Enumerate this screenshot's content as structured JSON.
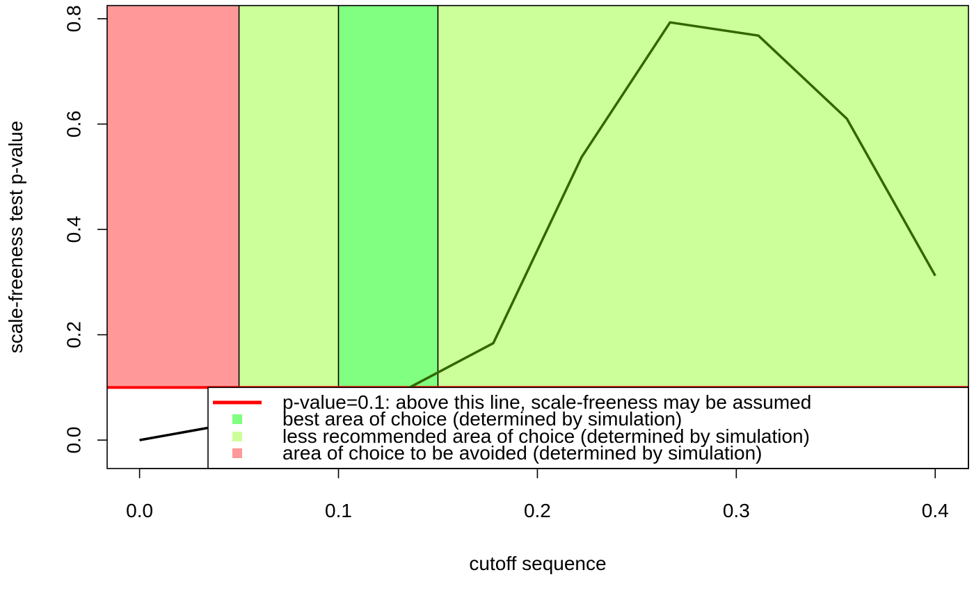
{
  "chart_data": {
    "type": "line",
    "title": "",
    "xlabel": "cutoff sequence",
    "ylabel": "scale-freeness test p-value",
    "xlim": [
      -0.0163,
      0.4167
    ],
    "ylim": [
      -0.054,
      0.825
    ],
    "grid": false,
    "x_ticks": [
      "0.0",
      "0.1",
      "0.2",
      "0.3",
      "0.4"
    ],
    "y_ticks": [
      "0.0",
      "0.2",
      "0.4",
      "0.6",
      "0.8"
    ],
    "regions": [
      {
        "from": -0.0163,
        "to": 0.05,
        "color": "#ff9999",
        "meaning": "avoid"
      },
      {
        "from": 0.05,
        "to": 0.1,
        "color": "#ccff99",
        "meaning": "less"
      },
      {
        "from": 0.1,
        "to": 0.15,
        "color": "#80ff80",
        "meaning": "best"
      },
      {
        "from": 0.15,
        "to": 0.4167,
        "color": "#ccff99",
        "meaning": "less"
      }
    ],
    "threshold": {
      "y": 0.1,
      "color": "#ff0000"
    },
    "series": [
      {
        "x": [
          0.0,
          0.0444,
          0.0889,
          0.1333,
          0.1778,
          0.2222,
          0.2667,
          0.3111,
          0.3556,
          0.4
        ],
        "values": [
          0.0,
          0.03,
          0.06,
          0.095,
          0.184,
          0.537,
          0.793,
          0.768,
          0.61,
          0.312
        ],
        "color": "#336600"
      }
    ],
    "legend": {
      "position": "bottom-right",
      "entries": [
        {
          "label": "p-value=0.1:  above this line, scale-freeness may be assumed",
          "symbol": "line",
          "color": "#ff0000"
        },
        {
          "label": "best area of choice (determined by simulation)",
          "symbol": "square",
          "color": "#80ff80"
        },
        {
          "label": "less recommended area of choice (determined by simulation)",
          "symbol": "square",
          "color": "#ccff99"
        },
        {
          "label": "area of choice to be avoided (determined by simulation)",
          "symbol": "square",
          "color": "#ff9999"
        }
      ]
    }
  }
}
